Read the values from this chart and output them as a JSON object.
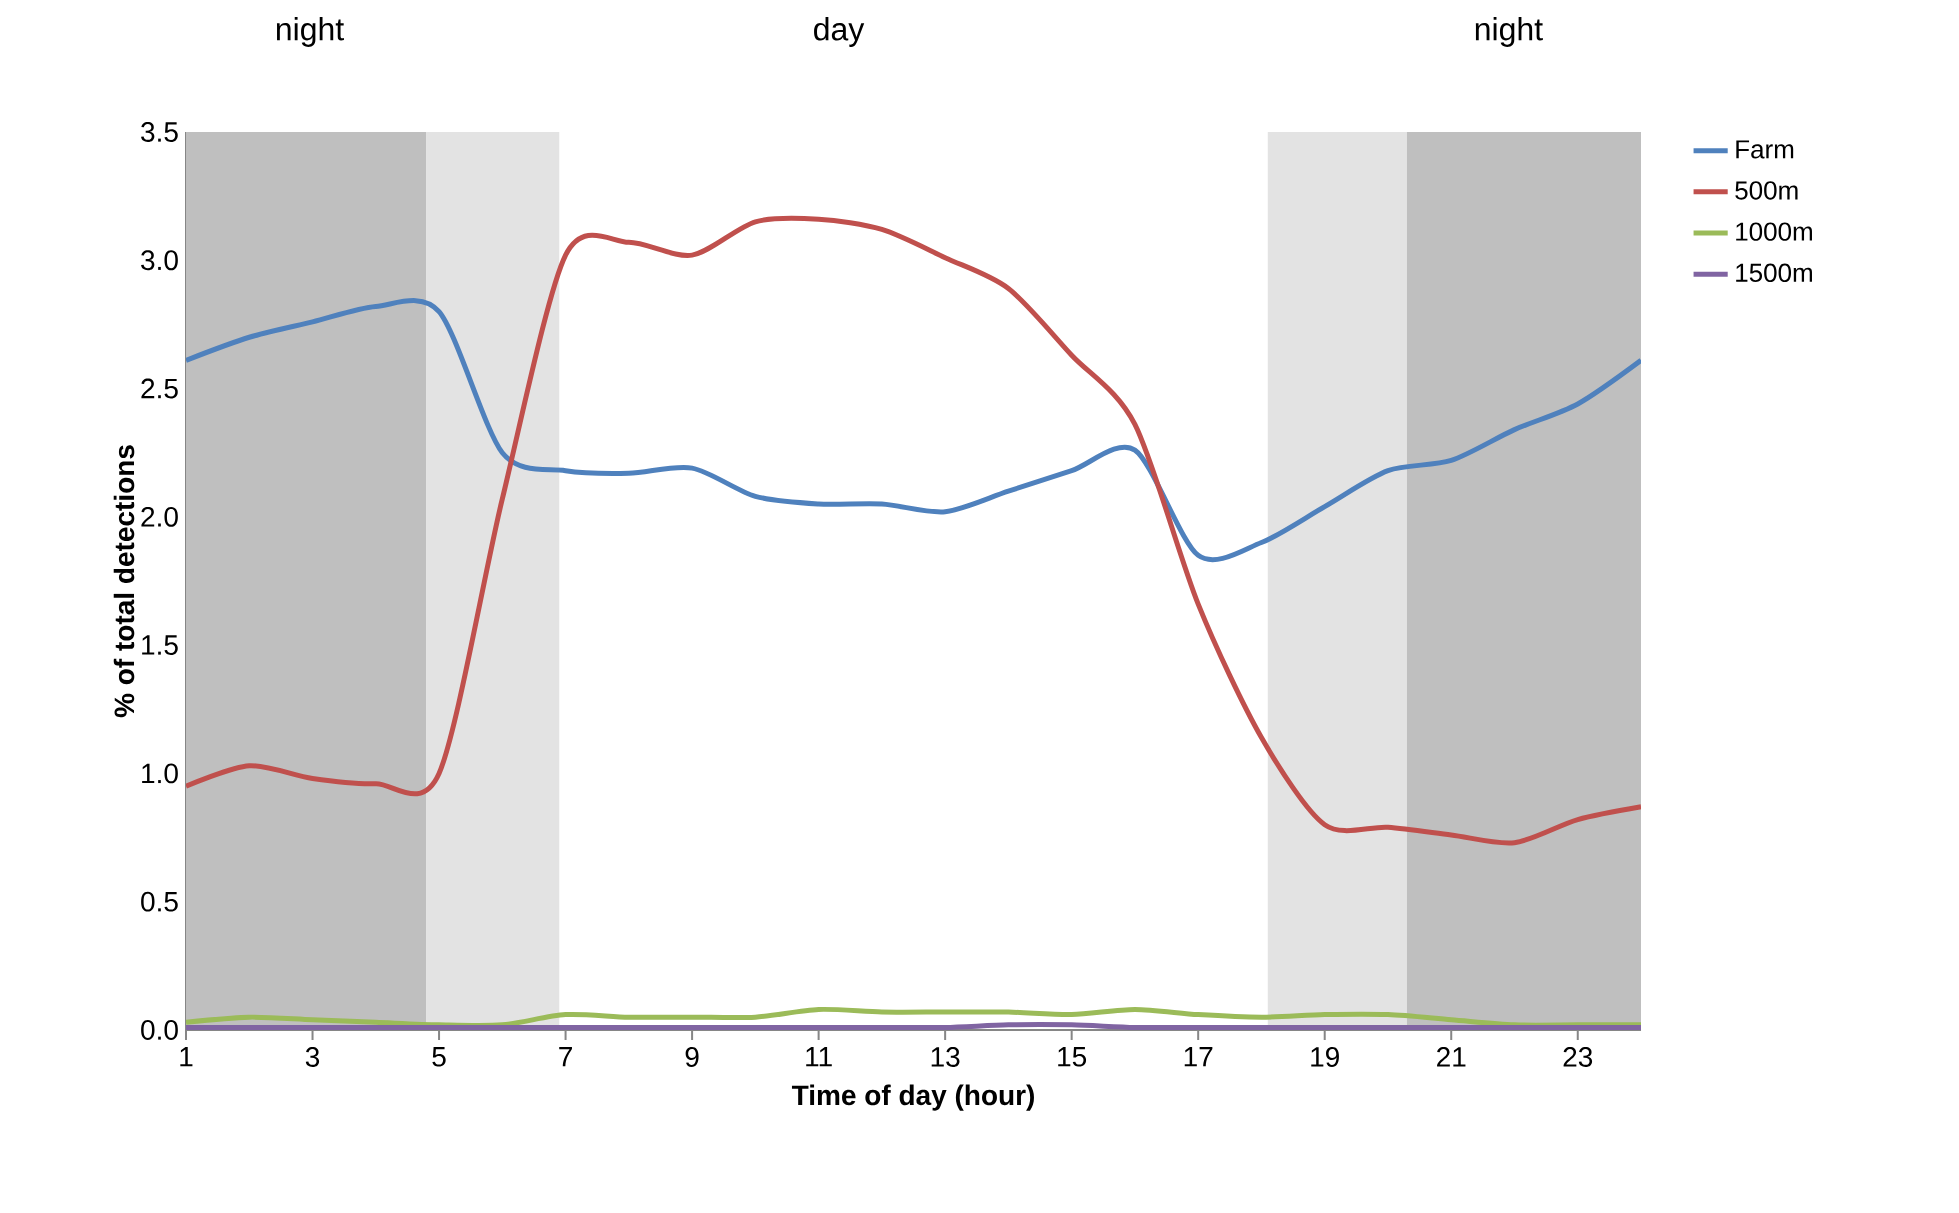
{
  "chart_data": {
    "type": "line",
    "xlabel": "Time of day (hour)",
    "ylabel": "% of total detections",
    "x": [
      1,
      2,
      3,
      4,
      5,
      6,
      7,
      8,
      9,
      10,
      11,
      12,
      13,
      14,
      15,
      16,
      17,
      18,
      19,
      20,
      21,
      22,
      23,
      24
    ],
    "series": [
      {
        "name": "Farm",
        "color": "#4f81bd",
        "values": [
          2.61,
          2.7,
          2.76,
          2.82,
          2.8,
          2.25,
          2.18,
          2.17,
          2.19,
          2.08,
          2.05,
          2.05,
          2.02,
          2.1,
          2.18,
          2.26,
          1.85,
          1.9,
          2.04,
          2.18,
          2.22,
          2.34,
          2.44,
          2.61
        ]
      },
      {
        "name": "500m",
        "color": "#c0504d",
        "values": [
          0.95,
          1.03,
          0.98,
          0.96,
          1.0,
          2.07,
          3.02,
          3.07,
          3.02,
          3.15,
          3.16,
          3.12,
          3.01,
          2.89,
          2.63,
          2.36,
          1.66,
          1.14,
          0.8,
          0.79,
          0.76,
          0.73,
          0.82,
          0.87
        ]
      },
      {
        "name": "1000m",
        "color": "#9bbb59",
        "values": [
          0.03,
          0.05,
          0.04,
          0.03,
          0.02,
          0.02,
          0.06,
          0.05,
          0.05,
          0.05,
          0.08,
          0.07,
          0.07,
          0.07,
          0.06,
          0.08,
          0.06,
          0.05,
          0.06,
          0.06,
          0.04,
          0.02,
          0.02,
          0.02
        ]
      },
      {
        "name": "1500m",
        "color": "#8064a2",
        "values": [
          0.01,
          0.01,
          0.01,
          0.01,
          0.01,
          0.01,
          0.01,
          0.01,
          0.01,
          0.01,
          0.01,
          0.01,
          0.01,
          0.02,
          0.02,
          0.01,
          0.01,
          0.01,
          0.01,
          0.01,
          0.01,
          0.01,
          0.01,
          0.01
        ]
      }
    ],
    "xlim": [
      1,
      24
    ],
    "xticks": [
      1,
      3,
      5,
      7,
      9,
      11,
      13,
      15,
      17,
      19,
      21,
      23
    ],
    "ylim": [
      0,
      3.5
    ],
    "yticks": [
      {
        "value": 0,
        "label": "0.0"
      },
      {
        "value": 0.5,
        "label": "0.5"
      },
      {
        "value": 1,
        "label": "1.0"
      },
      {
        "value": 1.5,
        "label": "1.5"
      },
      {
        "value": 2,
        "label": "2.0"
      },
      {
        "value": 2.5,
        "label": "2.5"
      },
      {
        "value": 3,
        "label": "3.0"
      },
      {
        "value": 3.5,
        "label": "3.5"
      }
    ],
    "bands": [
      {
        "axis": "x",
        "from": 1,
        "to": 4.8,
        "color": "#bfbfbf"
      },
      {
        "axis": "x",
        "from": 4.8,
        "to": 6.9,
        "color": "#e3e3e3"
      },
      {
        "axis": "x",
        "from": 18.1,
        "to": 20.3,
        "color": "#e3e3e3"
      },
      {
        "axis": "x",
        "from": 20.3,
        "to": 24,
        "color": "#bfbfbf"
      }
    ],
    "annotations": [
      "night",
      "day",
      "night"
    ],
    "legend": "right",
    "marker": "none",
    "line_style": "solid"
  }
}
